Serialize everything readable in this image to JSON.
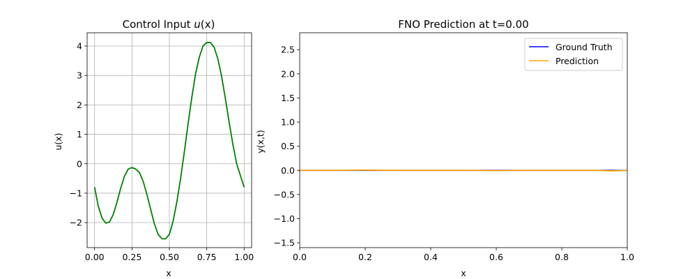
{
  "chart_data": [
    {
      "type": "line",
      "title_prefix": "Control Input ",
      "title_var": "u",
      "title_suffix": "(x)",
      "xlabel": "x",
      "ylabel": "u(x)",
      "xlim": [
        -0.05,
        1.05
      ],
      "ylim": [
        -2.85,
        4.45
      ],
      "xticks": [
        0.0,
        0.25,
        0.5,
        0.75,
        1.0
      ],
      "xtick_labels": [
        "0.00",
        "0.25",
        "0.50",
        "0.75",
        "1.00"
      ],
      "yticks": [
        -2,
        -1,
        0,
        1,
        2,
        3,
        4
      ],
      "ytick_labels": [
        "−2",
        "−1",
        "0",
        "1",
        "2",
        "3",
        "4"
      ],
      "grid": true,
      "series": [
        {
          "color": "#008000",
          "x": [
            0.0,
            0.025,
            0.05,
            0.075,
            0.1,
            0.125,
            0.15,
            0.175,
            0.2,
            0.225,
            0.25,
            0.275,
            0.3,
            0.325,
            0.35,
            0.375,
            0.4,
            0.425,
            0.45,
            0.475,
            0.5,
            0.525,
            0.55,
            0.575,
            0.6,
            0.625,
            0.65,
            0.675,
            0.7,
            0.725,
            0.75,
            0.775,
            0.8,
            0.825,
            0.85,
            0.875,
            0.9,
            0.925,
            0.95,
            0.975,
            1.0
          ],
          "y": [
            -0.8,
            -1.45,
            -1.85,
            -2.02,
            -1.98,
            -1.72,
            -1.3,
            -0.82,
            -0.42,
            -0.18,
            -0.13,
            -0.18,
            -0.3,
            -0.6,
            -1.05,
            -1.55,
            -2.05,
            -2.4,
            -2.55,
            -2.55,
            -2.4,
            -1.95,
            -1.3,
            -0.5,
            0.4,
            1.35,
            2.25,
            3.05,
            3.62,
            4.0,
            4.12,
            4.12,
            3.95,
            3.55,
            2.95,
            2.2,
            1.4,
            0.65,
            0.0,
            -0.4,
            -0.8
          ]
        }
      ]
    },
    {
      "type": "line",
      "title": "FNO Prediction at t=0.00",
      "xlabel": "x",
      "ylabel": "y(x,t)",
      "xlim": [
        0.0,
        1.0
      ],
      "ylim": [
        -1.6,
        2.85
      ],
      "xticks": [
        0.0,
        0.2,
        0.4,
        0.6,
        0.8,
        1.0
      ],
      "xtick_labels": [
        "0.0",
        "0.2",
        "0.4",
        "0.6",
        "0.8",
        "1.0"
      ],
      "yticks": [
        -1.5,
        -1.0,
        -0.5,
        0.0,
        0.5,
        1.0,
        1.5,
        2.0,
        2.5
      ],
      "ytick_labels": [
        "−1.5",
        "−1.0",
        "−0.5",
        "0.0",
        "0.5",
        "1.0",
        "1.5",
        "2.0",
        "2.5"
      ],
      "grid": false,
      "legend": "top-right",
      "series": [
        {
          "name": "Ground Truth",
          "color": "#0000ff",
          "x": [
            0.0,
            0.1,
            0.2,
            0.3,
            0.4,
            0.5,
            0.6,
            0.7,
            0.8,
            0.9,
            0.95,
            1.0
          ],
          "y": [
            0.0,
            0.0,
            0.0,
            0.0,
            0.0,
            0.0,
            0.0,
            0.0,
            0.0,
            0.0,
            0.0,
            0.0
          ]
        },
        {
          "name": "Prediction",
          "color": "#ffa500",
          "x": [
            0.0,
            0.1,
            0.2,
            0.3,
            0.4,
            0.5,
            0.6,
            0.7,
            0.8,
            0.9,
            0.95,
            1.0
          ],
          "y": [
            0.0,
            0.0,
            0.005,
            0.0,
            0.0,
            0.0,
            -0.005,
            0.0,
            0.0,
            0.0,
            -0.01,
            0.0
          ]
        }
      ]
    }
  ]
}
